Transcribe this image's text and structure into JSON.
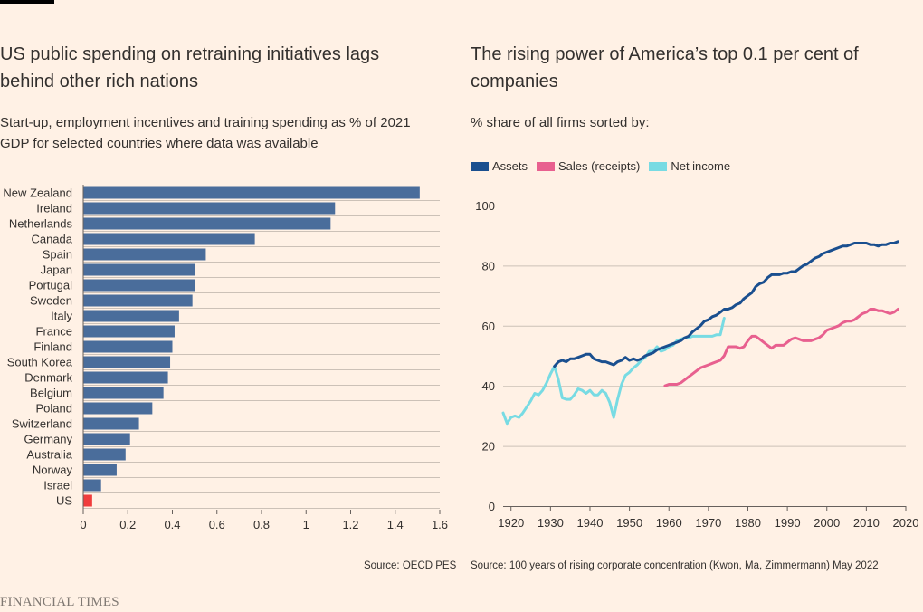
{
  "left": {
    "title_line1": "US public spending on retraining initiatives lags",
    "title_line2": "behind other rich nations",
    "subtitle_line1": "Start-up, employment incentives and training spending as % of 2021",
    "subtitle_line2": "GDP for selected countries where data was available",
    "source": "Source: OECD PES"
  },
  "right": {
    "title_line1": "The rising power of America’s top 0.1 per cent of",
    "title_line2": "companies",
    "subtitle": "% share of all firms sorted by:",
    "source": "Source: 100 years of rising corporate concentration (Kwon, Ma, Zimmermann) May 2022"
  },
  "brand": "FINANCIAL TIMES",
  "colors": {
    "bar": "#4a6d9b",
    "highlight": "#f03c3c",
    "assets": "#1a4f8f",
    "sales": "#e8608f",
    "net_income": "#78dbe3",
    "grid": "#ccc1b7"
  },
  "chart_data": [
    {
      "type": "bar",
      "orientation": "horizontal",
      "categories": [
        "New Zealand",
        "Ireland",
        "Netherlands",
        "Canada",
        "Spain",
        "Japan",
        "Portugal",
        "Sweden",
        "Italy",
        "France",
        "Finland",
        "South Korea",
        "Denmark",
        "Belgium",
        "Poland",
        "Switzerland",
        "Germany",
        "Australia",
        "Norway",
        "Israel",
        "US"
      ],
      "values": [
        1.51,
        1.13,
        1.11,
        0.77,
        0.55,
        0.5,
        0.5,
        0.49,
        0.43,
        0.41,
        0.4,
        0.39,
        0.38,
        0.36,
        0.31,
        0.25,
        0.21,
        0.19,
        0.15,
        0.08,
        0.04
      ],
      "highlight": "US",
      "xlim": [
        0,
        1.6
      ],
      "xticks": [
        "0",
        "0.2",
        "0.4",
        "0.6",
        "0.8",
        "1",
        "1.2",
        "1.4",
        "1.6"
      ],
      "grid": true
    },
    {
      "type": "line",
      "ylim": [
        0,
        100
      ],
      "xlim": [
        1918,
        2020
      ],
      "yticks": [
        "0",
        "20",
        "40",
        "60",
        "80",
        "100"
      ],
      "xticks": [
        "1920",
        "1930",
        "1940",
        "1950",
        "1960",
        "1970",
        "1980",
        "1990",
        "2000",
        "2010",
        "2020"
      ],
      "grid": true,
      "legend_position": "top-left",
      "series": [
        {
          "name": "Assets",
          "color_key": "assets",
          "points": [
            [
              1931,
              46.5
            ],
            [
              1932,
              48
            ],
            [
              1933,
              48.5
            ],
            [
              1934,
              48
            ],
            [
              1935,
              49
            ],
            [
              1936,
              49
            ],
            [
              1937,
              49.5
            ],
            [
              1938,
              50
            ],
            [
              1939,
              50.5
            ],
            [
              1940,
              50.5
            ],
            [
              1941,
              49
            ],
            [
              1942,
              48.5
            ],
            [
              1943,
              48
            ],
            [
              1944,
              48
            ],
            [
              1945,
              47.5
            ],
            [
              1946,
              47
            ],
            [
              1947,
              48
            ],
            [
              1948,
              48.5
            ],
            [
              1949,
              49.5
            ],
            [
              1950,
              48.5
            ],
            [
              1951,
              49
            ],
            [
              1952,
              48.5
            ],
            [
              1953,
              49
            ],
            [
              1954,
              50
            ],
            [
              1955,
              50.5
            ],
            [
              1956,
              51
            ],
            [
              1957,
              52
            ],
            [
              1958,
              52.5
            ],
            [
              1959,
              53
            ],
            [
              1960,
              53.5
            ],
            [
              1961,
              54
            ],
            [
              1962,
              54.5
            ],
            [
              1963,
              55
            ],
            [
              1964,
              56
            ],
            [
              1965,
              56.5
            ],
            [
              1966,
              58
            ],
            [
              1967,
              59
            ],
            [
              1968,
              60
            ],
            [
              1969,
              61.5
            ],
            [
              1970,
              62
            ],
            [
              1971,
              63
            ],
            [
              1972,
              63.5
            ],
            [
              1973,
              64.5
            ],
            [
              1974,
              65.5
            ],
            [
              1975,
              65.5
            ],
            [
              1976,
              66
            ],
            [
              1977,
              67
            ],
            [
              1978,
              67.5
            ],
            [
              1979,
              69
            ],
            [
              1980,
              70
            ],
            [
              1981,
              71
            ],
            [
              1982,
              73
            ],
            [
              1983,
              74
            ],
            [
              1984,
              74.5
            ],
            [
              1985,
              76
            ],
            [
              1986,
              77
            ],
            [
              1987,
              77
            ],
            [
              1988,
              77
            ],
            [
              1989,
              77.5
            ],
            [
              1990,
              77.5
            ],
            [
              1991,
              78
            ],
            [
              1992,
              78
            ],
            [
              1993,
              79
            ],
            [
              1994,
              80
            ],
            [
              1995,
              80.5
            ],
            [
              1996,
              81.5
            ],
            [
              1997,
              82.5
            ],
            [
              1998,
              83
            ],
            [
              1999,
              84
            ],
            [
              2000,
              84.5
            ],
            [
              2001,
              85
            ],
            [
              2002,
              85.5
            ],
            [
              2003,
              86
            ],
            [
              2004,
              86.5
            ],
            [
              2005,
              86.5
            ],
            [
              2006,
              87
            ],
            [
              2007,
              87.5
            ],
            [
              2008,
              87.5
            ],
            [
              2009,
              87.5
            ],
            [
              2010,
              87.5
            ],
            [
              2011,
              87
            ],
            [
              2012,
              87
            ],
            [
              2013,
              86.5
            ],
            [
              2014,
              87
            ],
            [
              2015,
              87
            ],
            [
              2016,
              87.5
            ],
            [
              2017,
              87.5
            ],
            [
              2018,
              88
            ]
          ]
        },
        {
          "name": "Sales (receipts)",
          "color_key": "sales",
          "points": [
            [
              1959,
              40
            ],
            [
              1960,
              40.5
            ],
            [
              1961,
              40.5
            ],
            [
              1962,
              40.5
            ],
            [
              1963,
              41
            ],
            [
              1964,
              42
            ],
            [
              1965,
              43
            ],
            [
              1966,
              44
            ],
            [
              1967,
              45
            ],
            [
              1968,
              46
            ],
            [
              1969,
              46.5
            ],
            [
              1970,
              47
            ],
            [
              1971,
              47.5
            ],
            [
              1972,
              48
            ],
            [
              1973,
              48.5
            ],
            [
              1974,
              50
            ],
            [
              1975,
              53
            ],
            [
              1976,
              53
            ],
            [
              1977,
              53
            ],
            [
              1978,
              52.5
            ],
            [
              1979,
              53
            ],
            [
              1980,
              55
            ],
            [
              1981,
              56.5
            ],
            [
              1982,
              56.5
            ],
            [
              1983,
              55.5
            ],
            [
              1984,
              54.5
            ],
            [
              1985,
              53.5
            ],
            [
              1986,
              52.5
            ],
            [
              1987,
              53.5
            ],
            [
              1988,
              53.5
            ],
            [
              1989,
              53.5
            ],
            [
              1990,
              54.5
            ],
            [
              1991,
              55.5
            ],
            [
              1992,
              56
            ],
            [
              1993,
              55.5
            ],
            [
              1994,
              55
            ],
            [
              1995,
              55
            ],
            [
              1996,
              55
            ],
            [
              1997,
              55.5
            ],
            [
              1998,
              56
            ],
            [
              1999,
              57
            ],
            [
              2000,
              58.5
            ],
            [
              2001,
              59
            ],
            [
              2002,
              59.5
            ],
            [
              2003,
              60
            ],
            [
              2004,
              61
            ],
            [
              2005,
              61.5
            ],
            [
              2006,
              61.5
            ],
            [
              2007,
              62
            ],
            [
              2008,
              63
            ],
            [
              2009,
              64
            ],
            [
              2010,
              64.5
            ],
            [
              2011,
              65.5
            ],
            [
              2012,
              65.5
            ],
            [
              2013,
              65
            ],
            [
              2014,
              65
            ],
            [
              2015,
              64.5
            ],
            [
              2016,
              64
            ],
            [
              2017,
              64.5
            ],
            [
              2018,
              65.5
            ]
          ]
        },
        {
          "name": "Net income",
          "color_key": "net_income",
          "points": [
            [
              1918,
              31
            ],
            [
              1919,
              27.5
            ],
            [
              1920,
              29.5
            ],
            [
              1921,
              30
            ],
            [
              1922,
              29.5
            ],
            [
              1923,
              31
            ],
            [
              1924,
              33
            ],
            [
              1925,
              35
            ],
            [
              1926,
              37.5
            ],
            [
              1927,
              37
            ],
            [
              1928,
              38.5
            ],
            [
              1929,
              41
            ],
            [
              1930,
              44
            ],
            [
              1931,
              46.5
            ],
            [
              1932,
              42
            ],
            [
              1933,
              36
            ],
            [
              1934,
              35.5
            ],
            [
              1935,
              35.5
            ],
            [
              1936,
              37
            ],
            [
              1937,
              39
            ],
            [
              1938,
              38.5
            ],
            [
              1939,
              37.5
            ],
            [
              1940,
              38.5
            ],
            [
              1941,
              37
            ],
            [
              1942,
              37
            ],
            [
              1943,
              38.5
            ],
            [
              1944,
              37.5
            ],
            [
              1945,
              34.5
            ],
            [
              1946,
              29.5
            ],
            [
              1947,
              35.5
            ],
            [
              1948,
              40.5
            ],
            [
              1949,
              43.5
            ],
            [
              1950,
              44.5
            ],
            [
              1951,
              46
            ],
            [
              1952,
              47
            ],
            [
              1953,
              48.5
            ],
            [
              1954,
              49.5
            ],
            [
              1955,
              51.5
            ],
            [
              1956,
              51.5
            ],
            [
              1957,
              53
            ],
            [
              1958,
              51.5
            ],
            [
              1959,
              52
            ],
            [
              1960,
              53
            ],
            [
              1961,
              53.5
            ],
            [
              1962,
              55
            ],
            [
              1963,
              55.5
            ],
            [
              1964,
              56
            ],
            [
              1965,
              56
            ],
            [
              1966,
              56.5
            ],
            [
              1967,
              56.5
            ],
            [
              1968,
              56.5
            ],
            [
              1969,
              56.5
            ],
            [
              1970,
              56.5
            ],
            [
              1971,
              56.5
            ],
            [
              1972,
              57
            ],
            [
              1973,
              57
            ],
            [
              1974,
              62.5
            ]
          ]
        }
      ]
    }
  ]
}
